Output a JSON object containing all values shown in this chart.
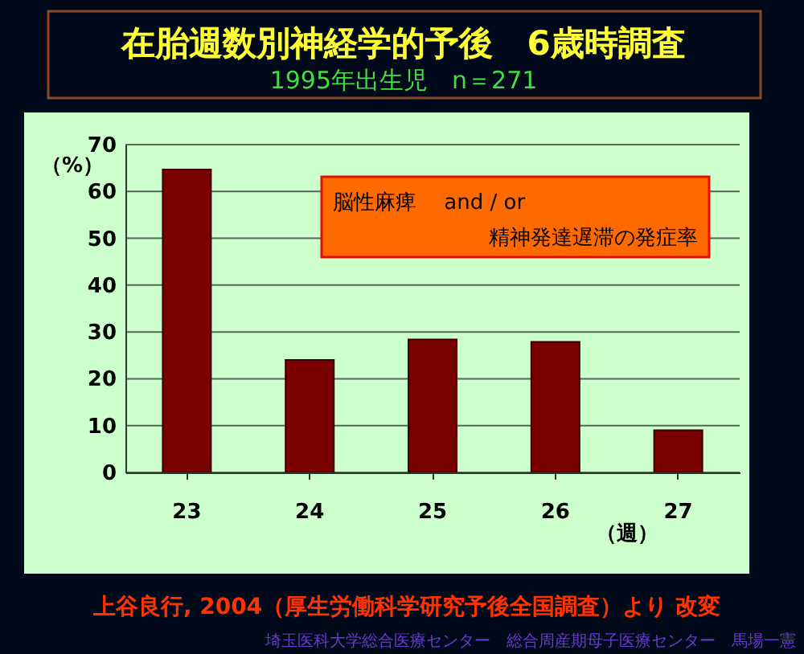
{
  "chart_data": {
    "type": "bar",
    "title": "在胎週数別神経学的予後　6歳時調査",
    "subtitle": "1995年出生児　n＝271",
    "categories": [
      "23",
      "24",
      "25",
      "26",
      "27"
    ],
    "values": [
      64.7,
      24.0,
      28.4,
      27.9,
      9.0
    ],
    "color": "#7a0000",
    "xlabel": "（週）",
    "ylabel": "（%）",
    "ylim": [
      0,
      70
    ],
    "yticks": [
      0,
      10,
      20,
      30,
      40,
      50,
      60,
      70
    ],
    "grid": "y",
    "annotations": [
      "脳性麻痺　 and / or\n精神発達遅滞の発症率",
      "上谷良行, 2004（厚生労働科学研究予後全国調査）より 改変",
      "埼玉医科大学総合医療センター　総合周産期母子医療センター　馬場一憲"
    ]
  }
}
